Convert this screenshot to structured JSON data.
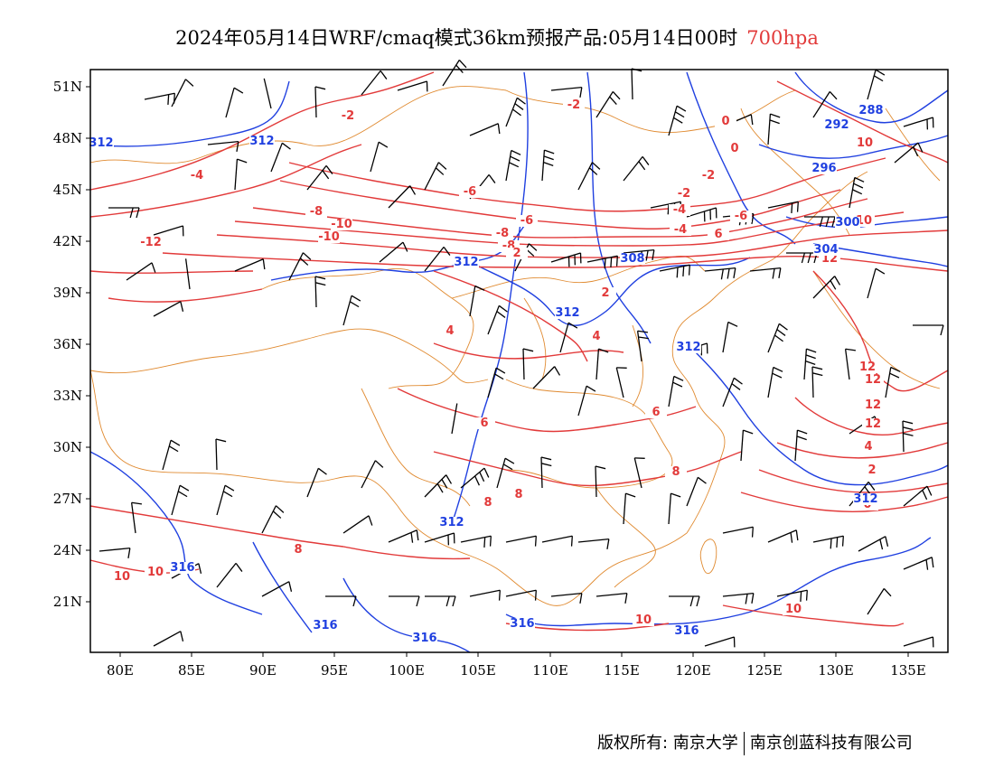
{
  "title": {
    "main": "2024年05月14日WRF/cmaq模式36km预报产品:05月14日00时",
    "level": "700hpa"
  },
  "colors": {
    "temperature": "#e23a3a",
    "height": "#2040e0",
    "border": "#e08a30",
    "wind": "#000000",
    "frame": "#000000"
  },
  "axes": {
    "x_ticks": [
      "80E",
      "85E",
      "90E",
      "95E",
      "100E",
      "105E",
      "110E",
      "115E",
      "120E",
      "125E",
      "130E",
      "135E"
    ],
    "y_ticks": [
      "51N",
      "48N",
      "45N",
      "42N",
      "39N",
      "36N",
      "33N",
      "30N",
      "27N",
      "24N",
      "21N"
    ]
  },
  "contour_labels": {
    "temperature": [
      "-2",
      "-4",
      "-6",
      "-8",
      "-10",
      "-10",
      "-12",
      "-2",
      "0",
      "0",
      "-2",
      "-2",
      "-4",
      "-4",
      "-6",
      "-6",
      "-8",
      "-8",
      "2",
      "2",
      "4",
      "4",
      "6",
      "6",
      "8",
      "8",
      "8",
      "8",
      "10",
      "10",
      "10",
      "10",
      "10",
      "10",
      "12",
      "12",
      "12",
      "12",
      "12",
      "4",
      "2",
      "0",
      "6"
    ],
    "height": [
      "312",
      "312",
      "312",
      "312",
      "312",
      "312",
      "312",
      "308",
      "304",
      "300",
      "296",
      "292",
      "288",
      "316",
      "316",
      "316",
      "316",
      "316"
    ]
  },
  "footer": {
    "left": "版权所有: 南京大学",
    "right": "南京创蓝科技有限公司"
  }
}
